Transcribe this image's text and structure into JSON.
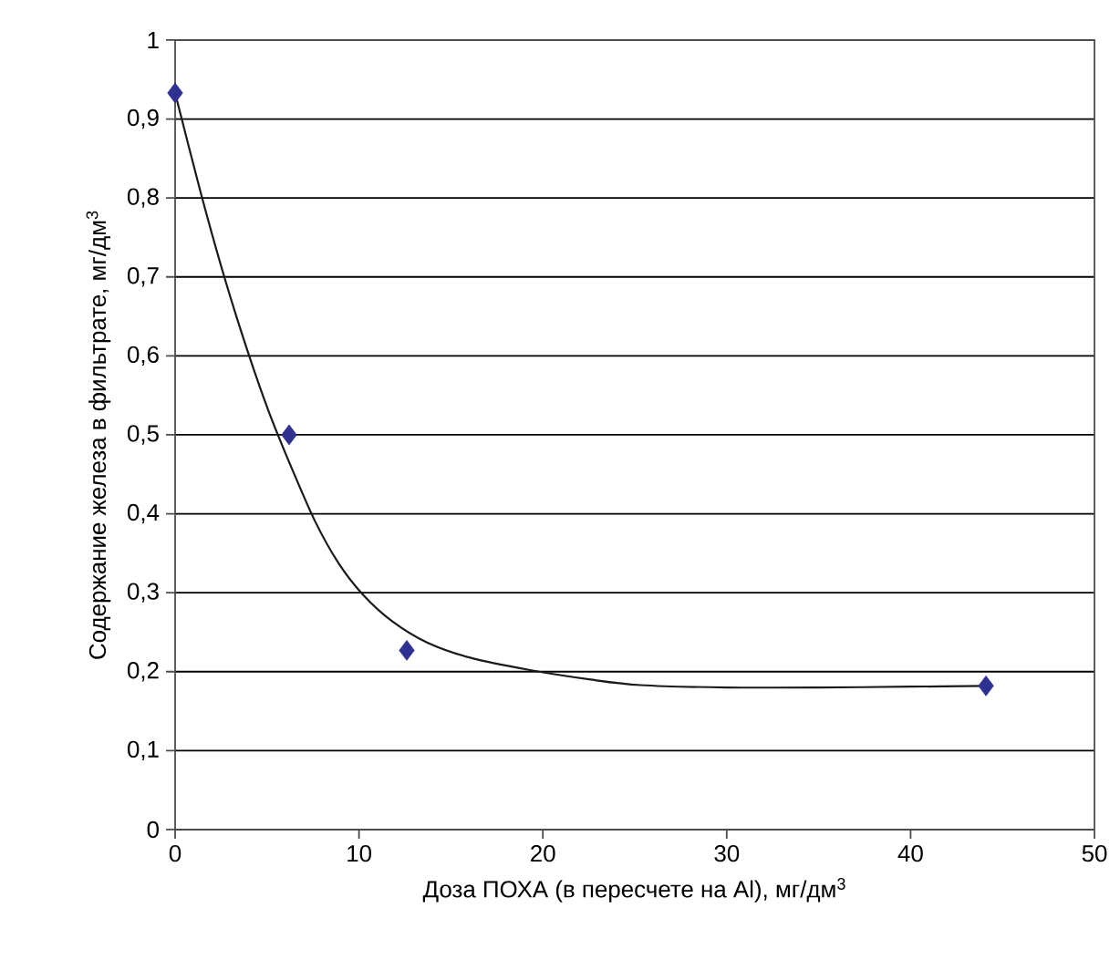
{
  "chart_data": {
    "type": "scatter",
    "xlabel": "Доза ПОХА (в пересчете на Al), мг/дм$^{3}$",
    "ylabel": "Содержание железа в фильтрате, мг/дм$^{3}$",
    "series": [
      {
        "color": "#2e3192",
        "marker": "diamond",
        "x": [
          0,
          6.2,
          12.6,
          44.1
        ],
        "values": [
          0.933,
          0.5,
          0.227,
          0.182
        ]
      },
      {
        "type": "line",
        "color": "#1a1a1a",
        "marker": "none",
        "line_style": "solid",
        "x": [
          0,
          1.4,
          2.7,
          4.0,
          5.1,
          6.3,
          7.6,
          8.9,
          10.2,
          11.8,
          13.7,
          16.0,
          19.3,
          22.6,
          25.3,
          30,
          35,
          40,
          44.1
        ],
        "values": [
          0.933,
          0.806,
          0.698,
          0.602,
          0.529,
          0.46,
          0.391,
          0.337,
          0.298,
          0.264,
          0.237,
          0.218,
          0.202,
          0.19,
          0.183,
          0.18,
          0.18,
          0.181,
          0.182
        ]
      }
    ],
    "xlim": [
      0,
      50
    ],
    "xticks": [
      0,
      10,
      20,
      30,
      40,
      50
    ],
    "ylim": [
      0,
      1
    ],
    "yticks": [
      0,
      {
        "value": 0.1,
        "label": "0,1"
      },
      {
        "value": 0.2,
        "label": "0,2"
      },
      {
        "value": 0.3,
        "label": "0,3"
      },
      {
        "value": 0.4,
        "label": "0,4"
      },
      {
        "value": 0.5,
        "label": "0,5"
      },
      {
        "value": 0.6,
        "label": "0,6"
      },
      {
        "value": 0.7,
        "label": "0,7"
      },
      {
        "value": 0.8,
        "label": "0,8"
      },
      {
        "value": 0.9,
        "label": "0,9"
      },
      1
    ],
    "grid": "y"
  }
}
